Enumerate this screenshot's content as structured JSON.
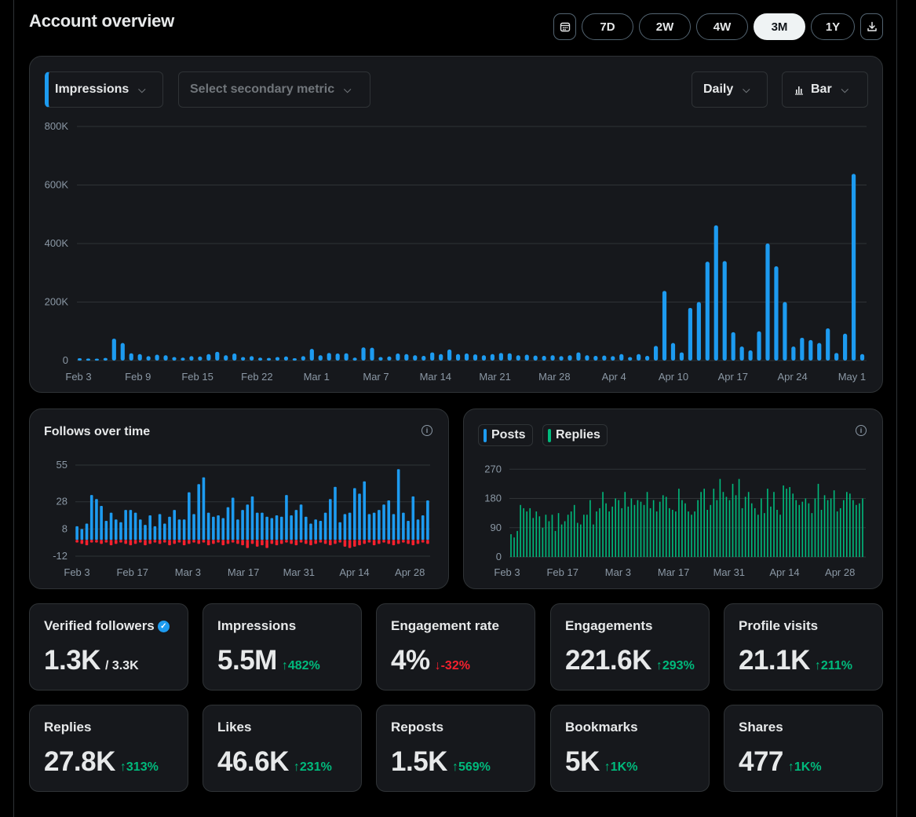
{
  "header": {
    "title": "Account overview",
    "ranges": [
      "7D",
      "2W",
      "4W",
      "3M",
      "1Y"
    ],
    "active_range": "3M",
    "calendar_icon": "calendar-icon",
    "download_icon": "download-icon"
  },
  "main_chart": {
    "primary_metric": "Impressions",
    "secondary_placeholder": "Select secondary metric",
    "interval": "Daily",
    "chart_type_label": "Bar",
    "accent": "#1d9bf0"
  },
  "follows_panel": {
    "title": "Follows over time"
  },
  "posts_panel": {
    "legend_posts": "Posts",
    "legend_replies": "Replies"
  },
  "chart_data": [
    {
      "type": "bar",
      "yticks": [
        "0",
        "200K",
        "400K",
        "600K",
        "800K"
      ],
      "ylim": [
        0,
        800000
      ],
      "xticks": [
        "Feb 3",
        "Feb 9",
        "Feb 15",
        "Feb 22",
        "Mar 1",
        "Mar 7",
        "Mar 14",
        "Mar 21",
        "Mar 28",
        "Apr 4",
        "Apr 10",
        "Apr 17",
        "Apr 24",
        "May 1"
      ],
      "series": [
        {
          "name": "Impressions",
          "color": "#1d9bf0",
          "values": [
            8000,
            7000,
            6000,
            9000,
            75000,
            60000,
            25000,
            22000,
            15000,
            20000,
            18000,
            12000,
            10000,
            15000,
            14000,
            22000,
            30000,
            18000,
            24000,
            12000,
            15000,
            10000,
            9000,
            12000,
            14000,
            8000,
            15000,
            40000,
            18000,
            26000,
            24000,
            25000,
            10000,
            45000,
            44000,
            12000,
            14000,
            24000,
            22000,
            18000,
            16000,
            28000,
            22000,
            38000,
            22000,
            24000,
            21000,
            18000,
            22000,
            26000,
            25000,
            18000,
            20000,
            17000,
            16000,
            18000,
            15000,
            18000,
            28000,
            18000,
            16000,
            17000,
            15000,
            22000,
            12000,
            22000,
            16000,
            50000,
            238000,
            60000,
            28000,
            180000,
            200000,
            338000,
            462000,
            340000,
            97000,
            48000,
            35000,
            100000,
            400000,
            322000,
            200000,
            48000,
            78000,
            70000,
            60000,
            110000,
            26000,
            92000,
            638000,
            22000
          ]
        }
      ]
    },
    {
      "type": "bar",
      "yticks": [
        "-12",
        "8",
        "28",
        "55"
      ],
      "ylim": [
        -12,
        55
      ],
      "xticks": [
        "Feb 3",
        "Feb 17",
        "Mar 3",
        "Mar 17",
        "Mar 31",
        "Apr 14",
        "Apr 28"
      ],
      "series": [
        {
          "name": "",
          "color": "#1d9bf0",
          "values": [
            10,
            8,
            12,
            33,
            30,
            25,
            14,
            20,
            15,
            13,
            22,
            22,
            20,
            15,
            11,
            18,
            10,
            19,
            12,
            17,
            22,
            15,
            15,
            35,
            19,
            41,
            46,
            20,
            17,
            18,
            16,
            24,
            31,
            15,
            22,
            26,
            32,
            20,
            20,
            17,
            16,
            18,
            17,
            33,
            18,
            22,
            26,
            17,
            12,
            15,
            14,
            20,
            30,
            39,
            13,
            19,
            20,
            38,
            34,
            43,
            19,
            20,
            22,
            26,
            29,
            19,
            52,
            20,
            14,
            32,
            15,
            18,
            29
          ]
        },
        {
          "name": "",
          "color": "#f4212e",
          "values": [
            -2,
            -3,
            -4,
            -2,
            -2,
            -3,
            -2,
            -4,
            -3,
            -2,
            -3,
            -4,
            -3,
            -2,
            -4,
            -3,
            -2,
            -3,
            -2,
            -4,
            -3,
            -2,
            -4,
            -3,
            -2,
            -3,
            -2,
            -4,
            -3,
            -2,
            -4,
            -3,
            -2,
            -3,
            -4,
            -6,
            -3,
            -5,
            -4,
            -6,
            -3,
            -4,
            -3,
            -2,
            -3,
            -4,
            -2,
            -3,
            -4,
            -3,
            -2,
            -3,
            -4,
            -3,
            -2,
            -5,
            -6,
            -5,
            -4,
            -3,
            -2,
            -4,
            -3,
            -2,
            -3,
            -4,
            -3,
            -2,
            -3,
            -4,
            -3,
            -2,
            -3
          ]
        }
      ]
    },
    {
      "type": "bar",
      "yticks": [
        "0",
        "90",
        "180",
        "270"
      ],
      "ylim": [
        0,
        290
      ],
      "xticks": [
        "Feb 3",
        "Feb 17",
        "Mar 3",
        "Mar 17",
        "Mar 31",
        "Apr 14",
        "Apr 28"
      ],
      "series": [
        {
          "name": "Posts",
          "color": "#1d9bf0",
          "values": []
        },
        {
          "name": "Replies",
          "color": "#00ba7c",
          "values": [
            70,
            60,
            80,
            160,
            150,
            140,
            150,
            120,
            140,
            125,
            90,
            130,
            110,
            130,
            80,
            135,
            100,
            110,
            130,
            140,
            160,
            105,
            100,
            130,
            130,
            175,
            100,
            140,
            150,
            200,
            165,
            140,
            155,
            180,
            175,
            150,
            200,
            155,
            180,
            160,
            175,
            170,
            160,
            200,
            150,
            175,
            140,
            170,
            190,
            185,
            150,
            145,
            140,
            210,
            175,
            165,
            140,
            130,
            140,
            175,
            200,
            210,
            145,
            160,
            210,
            175,
            240,
            200,
            185,
            175,
            225,
            190,
            240,
            150,
            185,
            200,
            165,
            150,
            130,
            180,
            135,
            210,
            155,
            200,
            145,
            130,
            220,
            210,
            215,
            195,
            175,
            160,
            170,
            180,
            165,
            135,
            180,
            225,
            145,
            190,
            175,
            180,
            205,
            140,
            150,
            175,
            200,
            195,
            175,
            160,
            165,
            180
          ]
        }
      ]
    }
  ],
  "stats": [
    {
      "label": "Verified followers",
      "value": "1.3K",
      "extra": "/ 3.3K",
      "verified": true
    },
    {
      "label": "Impressions",
      "value": "5.5M",
      "change": "482%",
      "dir": "up"
    },
    {
      "label": "Engagement rate",
      "value": "4%",
      "change": "-32%",
      "dir": "down"
    },
    {
      "label": "Engagements",
      "value": "221.6K",
      "change": "293%",
      "dir": "up"
    },
    {
      "label": "Profile visits",
      "value": "21.1K",
      "change": "211%",
      "dir": "up"
    },
    {
      "label": "Replies",
      "value": "27.8K",
      "change": "313%",
      "dir": "up"
    },
    {
      "label": "Likes",
      "value": "46.6K",
      "change": "231%",
      "dir": "up"
    },
    {
      "label": "Reposts",
      "value": "1.5K",
      "change": "569%",
      "dir": "up"
    },
    {
      "label": "Bookmarks",
      "value": "5K",
      "change": "1K%",
      "dir": "up"
    },
    {
      "label": "Shares",
      "value": "477",
      "change": "1K%",
      "dir": "up"
    }
  ]
}
